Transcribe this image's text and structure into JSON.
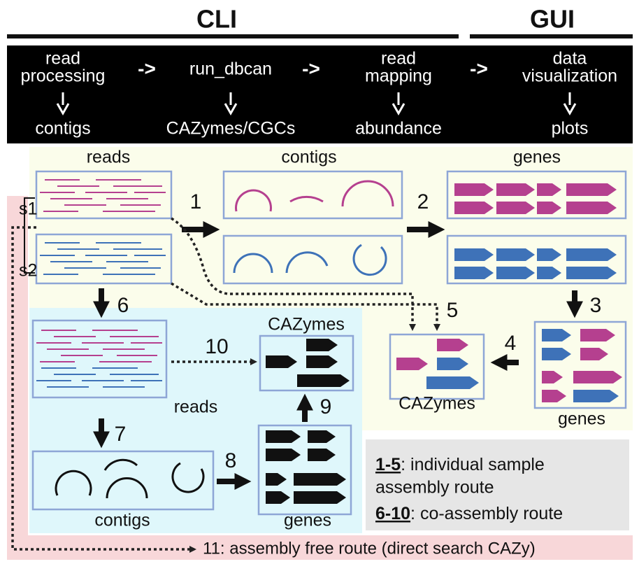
{
  "header": {
    "cli": "CLI",
    "gui": "GUI"
  },
  "pipeline": {
    "steps": [
      {
        "lines": [
          "read",
          "processing"
        ],
        "output": "contigs"
      },
      {
        "lines": [
          "run_dbcan"
        ],
        "output": "CAZymes/CGCs"
      },
      {
        "lines": [
          "read",
          "mapping"
        ],
        "output": "abundance"
      },
      {
        "lines": [
          "data",
          "visualization"
        ],
        "output": "plots"
      }
    ],
    "separators": [
      "->",
      "->",
      "->"
    ]
  },
  "panels": {
    "reads": "reads",
    "contigs": "contigs",
    "genes": "genes",
    "s1": "s1",
    "s2": "s2",
    "cazymes": "CAZymes",
    "merged_genes": "genes",
    "co_reads": "reads",
    "co_cazymes": "CAZymes",
    "co_contigs": "contigs",
    "co_genes": "genes"
  },
  "steps": [
    "1",
    "2",
    "3",
    "4",
    "5",
    "6",
    "7",
    "8",
    "9",
    "10"
  ],
  "legend": {
    "items": [
      {
        "key": "1-5",
        "lines": [
          ": individual sample",
          "assembly route"
        ]
      },
      {
        "key": "6-10",
        "lines": [
          ": co-assembly route"
        ]
      }
    ]
  },
  "footer": "11: assembly free route (direct search CAZy)"
}
